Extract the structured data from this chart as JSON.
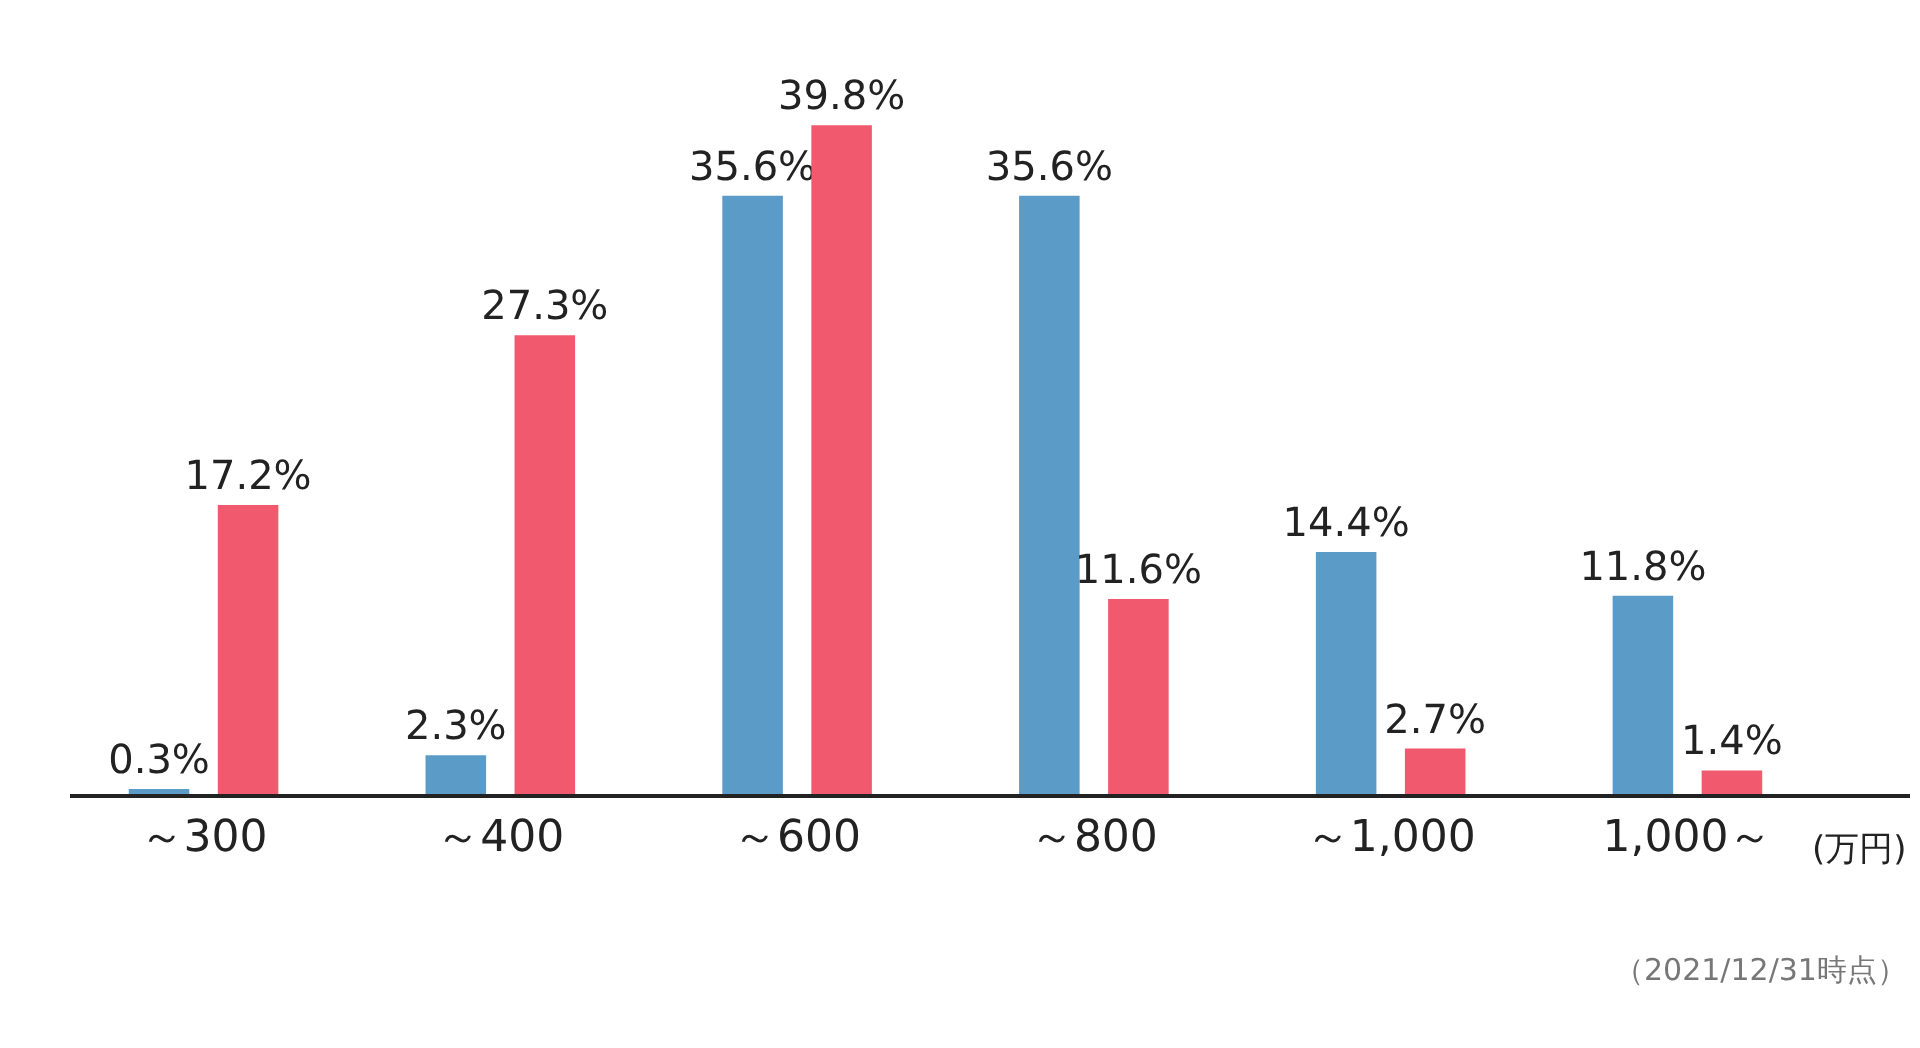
{
  "chart_data": {
    "type": "bar",
    "categories": [
      "～300",
      "～400",
      "～600",
      "～800",
      "～1,000",
      "1,000～"
    ],
    "series": [
      {
        "color": "#5b9bc8",
        "values": [
          0.3,
          2.3,
          35.6,
          35.6,
          14.4,
          11.8
        ],
        "value_labels": [
          "0.3%",
          "2.3%",
          "35.6%",
          "35.6%",
          "14.4%",
          "11.8%"
        ]
      },
      {
        "color": "#f0596e",
        "values": [
          17.2,
          27.3,
          39.8,
          11.6,
          2.7,
          1.4
        ],
        "value_labels": [
          "17.2%",
          "27.3%",
          "39.8%",
          "11.6%",
          "2.7%",
          "1.4%"
        ]
      }
    ],
    "annotations": [
      "(万円)",
      "（2021/12/31時点）"
    ]
  }
}
